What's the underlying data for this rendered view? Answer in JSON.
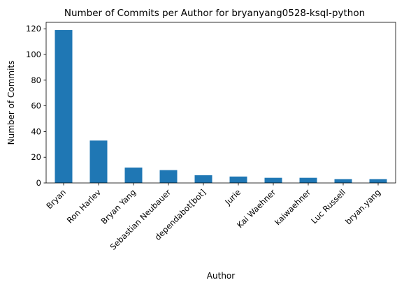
{
  "chart_data": {
    "type": "bar",
    "title": "Number of Commits per Author for bryanyang0528-ksql-python",
    "xlabel": "Author",
    "ylabel": "Number of Commits",
    "categories": [
      "Bryan",
      "Ron Harlev",
      "Bryan Yang",
      "Sebastian Neubauer",
      "dependabot[bot]",
      "Jurie",
      "Kai Waehner",
      "kaiwaehner",
      "Luc Russell",
      "bryan.yang"
    ],
    "values": [
      119,
      33,
      12,
      10,
      6,
      5,
      4,
      4,
      3,
      3
    ],
    "ylim": [
      0,
      125
    ],
    "yticks": [
      0,
      20,
      40,
      60,
      80,
      100,
      120
    ],
    "grid": false,
    "legend": "none",
    "bar_color": "#1f77b4"
  }
}
